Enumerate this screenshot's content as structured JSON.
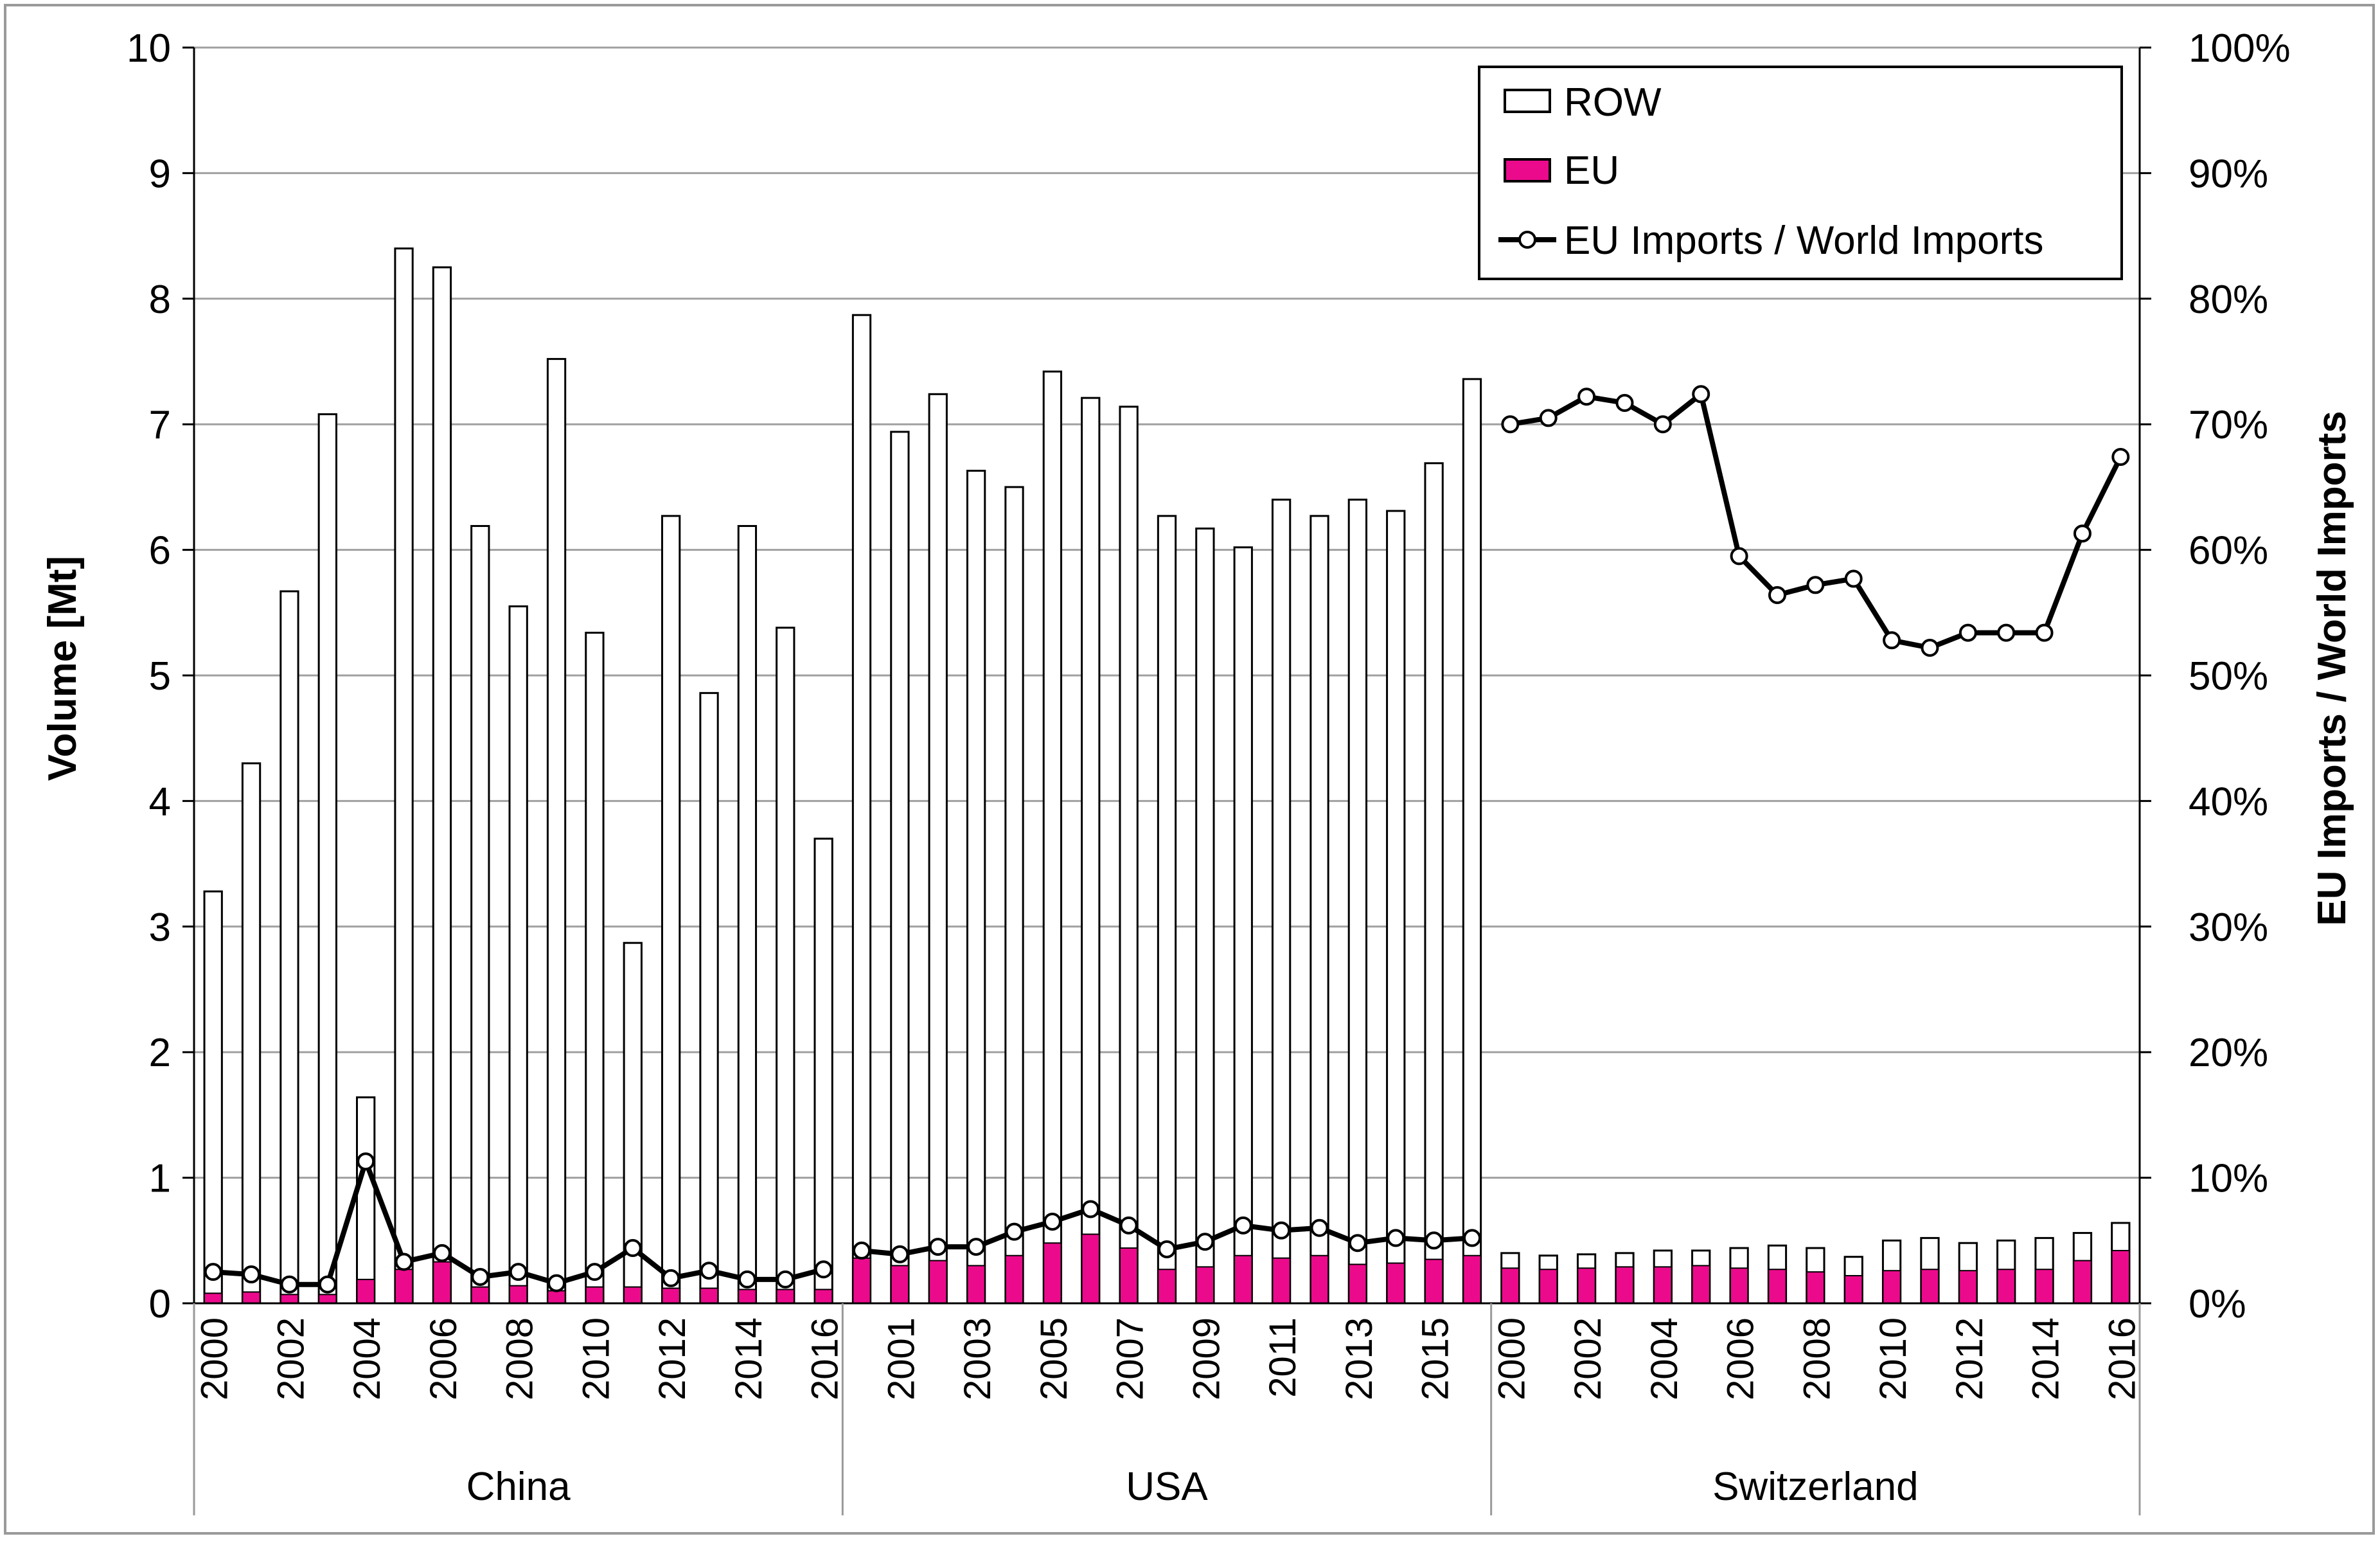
{
  "chart_data": {
    "type": "bar",
    "title": "",
    "ylabel": "Volume [Mt]",
    "y2label": "EU Imports / World Imports",
    "ylim": [
      0,
      10
    ],
    "y2lim": [
      0,
      100
    ],
    "yticks": [
      "0",
      "1",
      "2",
      "3",
      "4",
      "5",
      "6",
      "7",
      "8",
      "9",
      "10"
    ],
    "y2ticks": [
      "0%",
      "10%",
      "20%",
      "30%",
      "40%",
      "50%",
      "60%",
      "70%",
      "80%",
      "90%",
      "100%"
    ],
    "legend": {
      "position": "top-right",
      "entries": [
        "ROW",
        "EU",
        "EU Imports / World Imports"
      ]
    },
    "colors": {
      "row": "#ffffff",
      "eu": "#ec0a8c",
      "line": "#000000",
      "grid": "#a0a0a0"
    },
    "groups": [
      {
        "name": "China",
        "years": [
          2000,
          2001,
          2002,
          2003,
          2004,
          2005,
          2006,
          2007,
          2008,
          2009,
          2010,
          2011,
          2012,
          2013,
          2014,
          2015,
          2016
        ],
        "tick_labels": [
          "2000",
          "2002",
          "2004",
          "2006",
          "2008",
          "2010",
          "2012",
          "2014",
          "2016"
        ],
        "total": [
          3.28,
          4.3,
          5.67,
          7.08,
          1.64,
          8.4,
          8.25,
          6.19,
          5.55,
          7.52,
          5.34,
          2.87,
          6.27,
          4.86,
          6.19,
          5.38,
          3.7
        ],
        "eu": [
          0.08,
          0.09,
          0.07,
          0.07,
          0.19,
          0.27,
          0.33,
          0.13,
          0.14,
          0.1,
          0.13,
          0.13,
          0.12,
          0.12,
          0.11,
          0.11,
          0.11
        ],
        "eu_share_pct": [
          2.5,
          2.3,
          1.5,
          1.5,
          11.3,
          3.3,
          4.0,
          2.1,
          2.5,
          1.6,
          2.5,
          4.4,
          2.0,
          2.6,
          1.9,
          1.9,
          2.7
        ]
      },
      {
        "name": "USA",
        "years": [
          2000,
          2001,
          2002,
          2003,
          2004,
          2005,
          2006,
          2007,
          2008,
          2009,
          2010,
          2011,
          2012,
          2013,
          2014,
          2015,
          2016
        ],
        "tick_labels": [
          "2001",
          "2003",
          "2005",
          "2007",
          "2009",
          "2011",
          "2013",
          "2015"
        ],
        "total": [
          7.87,
          6.94,
          7.24,
          6.63,
          6.5,
          7.42,
          7.21,
          7.14,
          6.27,
          6.17,
          6.02,
          6.4,
          6.27,
          6.4,
          6.31,
          6.69,
          7.36
        ],
        "eu": [
          0.36,
          0.3,
          0.34,
          0.3,
          0.38,
          0.48,
          0.55,
          0.44,
          0.27,
          0.29,
          0.38,
          0.36,
          0.38,
          0.31,
          0.32,
          0.35,
          0.38
        ],
        "eu_share_pct": [
          4.2,
          3.9,
          4.5,
          4.5,
          5.7,
          6.5,
          7.5,
          6.2,
          4.3,
          4.9,
          6.2,
          5.8,
          6.0,
          4.8,
          5.2,
          5.0,
          5.2
        ]
      },
      {
        "name": "Switzerland",
        "years": [
          2000,
          2001,
          2002,
          2003,
          2004,
          2005,
          2006,
          2007,
          2008,
          2009,
          2010,
          2011,
          2012,
          2013,
          2014,
          2015,
          2016
        ],
        "tick_labels": [
          "2000",
          "2002",
          "2004",
          "2006",
          "2008",
          "2010",
          "2012",
          "2014",
          "2016"
        ],
        "total": [
          0.4,
          0.38,
          0.39,
          0.4,
          0.42,
          0.42,
          0.44,
          0.46,
          0.44,
          0.37,
          0.5,
          0.52,
          0.48,
          0.5,
          0.52,
          0.56,
          0.64
        ],
        "eu": [
          0.28,
          0.27,
          0.28,
          0.29,
          0.29,
          0.3,
          0.28,
          0.27,
          0.25,
          0.22,
          0.26,
          0.27,
          0.26,
          0.27,
          0.27,
          0.34,
          0.42
        ],
        "eu_share_pct": [
          70.0,
          70.5,
          72.2,
          71.7,
          70.0,
          72.4,
          59.5,
          56.4,
          57.2,
          57.7,
          52.8,
          52.2,
          53.4,
          53.4,
          53.4,
          61.3,
          67.4
        ]
      }
    ]
  }
}
